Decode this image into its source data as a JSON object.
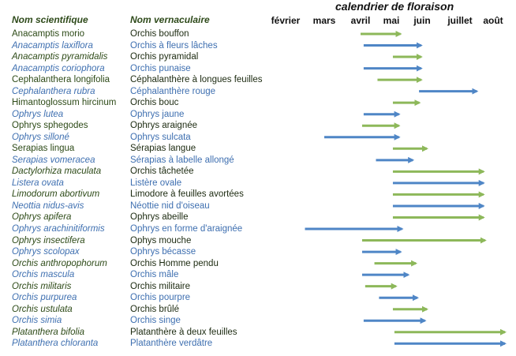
{
  "chart_data": {
    "type": "bar",
    "title": "calendrier de floraison",
    "columns": [
      "Nom scientifique",
      "Nom vernaculaire"
    ],
    "months": [
      "février",
      "mars",
      "avril",
      "mai",
      "juin",
      "juillet",
      "août"
    ],
    "colors": {
      "green": "#8db85a",
      "blue": "#4f86c6",
      "text_green": "#2d4a17",
      "text_blue": "#3e6fb0"
    },
    "rows": [
      {
        "sci": "Anacamptis morio",
        "ver": "Orchis bouffon",
        "sci_italic": false,
        "text": "green",
        "color": "green",
        "start": 4.0,
        "end": 5.45
      },
      {
        "sci": "Anacamptis laxiflora",
        "ver": "Orchis à fleurs lâches",
        "sci_italic": true,
        "text": "blue",
        "color": "blue",
        "start": 4.1,
        "end": 6.1
      },
      {
        "sci": "Anacamptis pyramidalis",
        "ver": "Orchis pyramidal",
        "sci_italic": true,
        "text": "green",
        "color": "green",
        "start": 5.05,
        "end": 6.1
      },
      {
        "sci": "Anacamptis coriophora",
        "ver": "Orchis punaise",
        "sci_italic": true,
        "text": "blue",
        "color": "blue",
        "start": 4.1,
        "end": 6.1
      },
      {
        "sci": "Cephalanthera longifolia",
        "ver": "Céphalanthère à longues feuilles",
        "sci_italic": false,
        "text": "green",
        "color": "green",
        "start": 4.55,
        "end": 6.1
      },
      {
        "sci": "Cephalanthera rubra",
        "ver": "Céphalanthère  rouge",
        "sci_italic": true,
        "text": "blue",
        "color": "blue",
        "start": 5.9,
        "end": 7.65
      },
      {
        "sci": "Himantoglossum hircinum",
        "ver": "Orchis bouc",
        "sci_italic": false,
        "text": "green",
        "color": "green",
        "start": 5.05,
        "end": 6.05
      },
      {
        "sci": "Ophrys lutea",
        "ver": "Ophrys jaune",
        "sci_italic": true,
        "text": "blue",
        "color": "blue",
        "start": 4.1,
        "end": 5.4
      },
      {
        "sci": "Ophrys sphegodes",
        "ver": "Ophrys araignée",
        "sci_italic": false,
        "text": "green",
        "color": "green",
        "start": 4.05,
        "end": 5.4
      },
      {
        "sci": "Ophrys silloné",
        "ver": "Ophrys sulcata",
        "sci_italic": true,
        "text": "blue",
        "color": "blue",
        "start": 3.0,
        "end": 5.4
      },
      {
        "sci": "Serapias lingua",
        "ver": "Sérapias langue",
        "sci_italic": false,
        "text": "green",
        "color": "green",
        "start": 5.05,
        "end": 6.25
      },
      {
        "sci": "Serapias vomeracea",
        "ver": "Sérapias à labelle allongé",
        "sci_italic": true,
        "text": "blue",
        "color": "blue",
        "start": 4.5,
        "end": 5.85
      },
      {
        "sci": "Dactylorhiza maculata",
        "ver": "Orchis tâchetée",
        "sci_italic": true,
        "text": "green",
        "color": "green",
        "start": 5.05,
        "end": 7.85
      },
      {
        "sci": "Listera ovata",
        "ver": "Listère ovale",
        "sci_italic": true,
        "text": "blue",
        "color": "blue",
        "start": 5.05,
        "end": 7.85
      },
      {
        "sci": "Limodorum abortivum",
        "ver": "Limodore à feuilles avortées",
        "sci_italic": true,
        "text": "green",
        "color": "green",
        "start": 5.05,
        "end": 7.85
      },
      {
        "sci": "Neottia nidus-avis",
        "ver": "Néottie nid d'oiseau",
        "sci_italic": true,
        "text": "blue",
        "color": "blue",
        "start": 5.05,
        "end": 7.85
      },
      {
        "sci": "Ophrys apifera",
        "ver": "Ophrys abeille",
        "sci_italic": true,
        "text": "green",
        "color": "green",
        "start": 5.05,
        "end": 7.85
      },
      {
        "sci": "Ophrys arachinitiformis",
        "ver": "Ophrys en forme d'araignée",
        "sci_italic": true,
        "text": "blue",
        "color": "blue",
        "start": 2.5,
        "end": 5.5
      },
      {
        "sci": "Ophrys insectifera",
        "ver": "Ophys mouche",
        "sci_italic": true,
        "text": "green",
        "color": "green",
        "start": 4.05,
        "end": 7.9
      },
      {
        "sci": "Ophrys scolopax",
        "ver": "Ophrys bécasse",
        "sci_italic": true,
        "text": "blue",
        "color": "blue",
        "start": 4.05,
        "end": 5.45
      },
      {
        "sci": "Orchis anthropophorum",
        "ver": "Orchis Homme pendu",
        "sci_italic": true,
        "text": "green",
        "color": "green",
        "start": 4.45,
        "end": 5.95
      },
      {
        "sci": "Orchis mascula",
        "ver": "Orchis mâle",
        "sci_italic": true,
        "text": "blue",
        "color": "blue",
        "start": 4.05,
        "end": 5.7
      },
      {
        "sci": "Orchis militaris",
        "ver": "Orchis militaire",
        "sci_italic": true,
        "text": "green",
        "color": "green",
        "start": 4.15,
        "end": 5.3
      },
      {
        "sci": "Orchis purpurea",
        "ver": "Orchis pourpre",
        "sci_italic": true,
        "text": "blue",
        "color": "blue",
        "start": 4.6,
        "end": 6.0
      },
      {
        "sci": "Orchis ustulata",
        "ver": "Orchis brûlé",
        "sci_italic": true,
        "text": "green",
        "color": "green",
        "start": 5.05,
        "end": 6.25
      },
      {
        "sci": "Orchis simia",
        "ver": "Orchis singe",
        "sci_italic": true,
        "text": "blue",
        "color": "blue",
        "start": 4.1,
        "end": 6.2
      },
      {
        "sci": "Platanthera bifolia",
        "ver": "Platanthère à deux feuilles",
        "sci_italic": true,
        "text": "green",
        "color": "green",
        "start": 5.1,
        "end": 8.5
      },
      {
        "sci": "Platanthera chloranta",
        "ver": "Platanthère verdâtre",
        "sci_italic": true,
        "text": "blue",
        "color": "blue",
        "start": 5.1,
        "end": 8.5
      }
    ]
  }
}
